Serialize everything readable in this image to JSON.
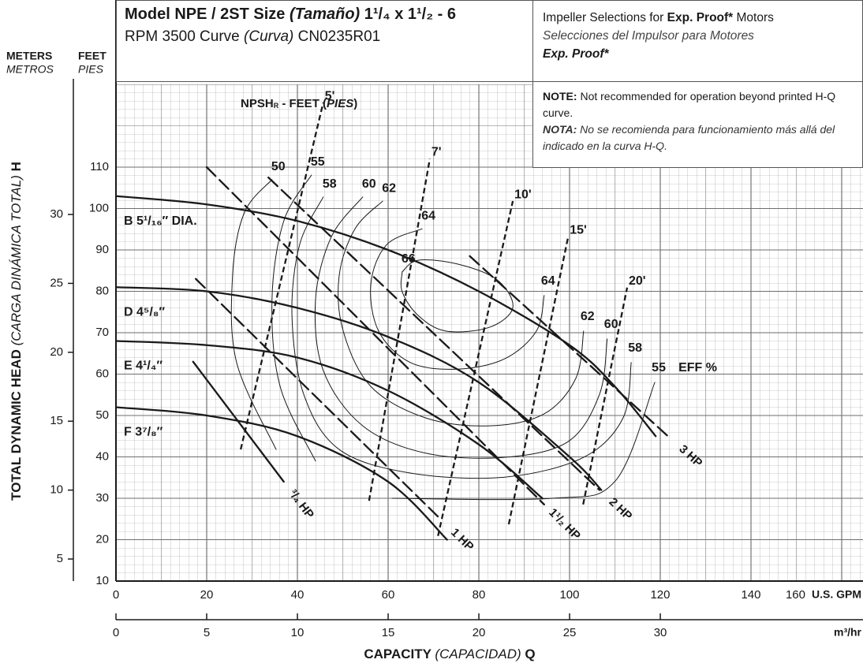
{
  "chart_data": {
    "type": "line",
    "header": {
      "model": [
        "Model NPE / 2ST Size ",
        "(Tamaño)",
        " 1¹/₄ x 1¹/₂ - 6"
      ],
      "curve": [
        "RPM 3500 Curve ",
        "(Curva)",
        " CN0235R01"
      ],
      "selections": [
        "Impeller Selections for ",
        "Exp. Proof*",
        " Motors"
      ],
      "selections_es": [
        "Selecciones del Impulsor para Motores",
        "Exp. Proof*"
      ],
      "note": [
        "NOTE:",
        " Not recommended for operation beyond printed H-Q curve."
      ],
      "nota": [
        "NOTA:",
        " No se recomienda para funcionamiento más allá del indicado en la curva H-Q."
      ]
    },
    "ylabel": [
      "TOTAL DYNAMIC HEAD ",
      "(CARGA DINÁMICA TOTAL)",
      " H"
    ],
    "xlabel": [
      "CAPACITY ",
      "(CAPACIDAD)",
      " Q"
    ],
    "y_units": [
      "FEET",
      "PIES"
    ],
    "y2_units": [
      "METERS",
      "METROS"
    ],
    "x_unit": "U.S. GPM",
    "x2_unit": "m³/hr",
    "npsh_label": [
      "NPSH",
      "R",
      " - FEET (",
      "PIES",
      ")"
    ],
    "eff_label": "EFF %",
    "xlim": [
      0,
      164.7
    ],
    "xticks": [
      0,
      20,
      40,
      60,
      80,
      100,
      120,
      140,
      160
    ],
    "ylim": [
      10,
      130
    ],
    "yticks": [
      10,
      20,
      30,
      40,
      50,
      60,
      70,
      80,
      90,
      100,
      110
    ],
    "y2lim": [
      3.4,
      39.44
    ],
    "y2ticks": [
      5,
      10,
      15,
      20,
      25,
      30
    ],
    "x2lim": [
      0,
      41.17
    ],
    "x2ticks": [
      0,
      5,
      10,
      15,
      20,
      25,
      30
    ],
    "color": "#1a1a1a",
    "grid": true,
    "series": [
      {
        "name": "B 5¹/₁₆″ DIA.",
        "x": [
          0,
          20,
          40,
          60,
          80,
          100,
          110,
          119
        ],
        "values": [
          103,
          101,
          97,
          90,
          80,
          67,
          57,
          45
        ]
      },
      {
        "name": "D 4⁵/₈″",
        "x": [
          0,
          20,
          40,
          60,
          80,
          100,
          107
        ],
        "values": [
          81,
          80,
          76,
          69,
          58,
          40,
          32
        ]
      },
      {
        "name": "E 4¹/₄″",
        "x": [
          0,
          20,
          40,
          60,
          80,
          94
        ],
        "values": [
          68,
          67,
          64,
          56,
          43,
          30
        ]
      },
      {
        "name": "F 3⁷/₈″",
        "x": [
          0,
          20,
          40,
          60,
          73
        ],
        "values": [
          52,
          50,
          45,
          34,
          20
        ]
      }
    ],
    "hp_lines": [
      {
        "name": "³/₄ HP",
        "dashed": false,
        "x": [
          17,
          37
        ],
        "values": [
          63,
          34
        ]
      },
      {
        "name": "1 HP",
        "dashed": true,
        "x": [
          17.6,
          71.8
        ],
        "values": [
          83,
          24.7
        ]
      },
      {
        "name": "1¹/₂ HP",
        "dashed": true,
        "x": [
          20,
          94.4
        ],
        "values": [
          110,
          28.5
        ]
      },
      {
        "name": "2 HP",
        "dashed": true,
        "x": [
          33.6,
          106.6
        ],
        "values": [
          107.5,
          32
        ]
      },
      {
        "name": "3 HP",
        "dashed": true,
        "x": [
          78,
          122
        ],
        "values": [
          88.5,
          44.7
        ]
      }
    ],
    "npsh_lines": [
      {
        "name": "5'",
        "x": [
          27.5,
          45.7
        ],
        "values": [
          41.8,
          125.6
        ]
      },
      {
        "name": "7'",
        "x": [
          55.8,
          69.2
        ],
        "values": [
          29.4,
          112
        ]
      },
      {
        "name": "10'",
        "x": [
          71,
          87.5
        ],
        "values": [
          20.9,
          101.8
        ]
      },
      {
        "name": "15'",
        "x": [
          86.6,
          99.7
        ],
        "values": [
          23.7,
          93.2
        ]
      },
      {
        "name": "20'",
        "x": [
          103,
          112.7
        ],
        "values": [
          28.5,
          80.9
        ]
      }
    ],
    "efficiency_curves": [
      {
        "name": "50",
        "x": [
          34.4,
          28.3,
          25.7,
          26.6,
          35.3
        ],
        "values": [
          107,
          99,
          83.7,
          62.8,
          41.8
        ]
      },
      {
        "name": "55",
        "x": [
          43.1,
          37,
          34.4,
          36.2,
          44,
          null,
          60.9,
          96.2,
          110.1,
          118.8
        ],
        "values": [
          108.1,
          97,
          78,
          57,
          39,
          null,
          30,
          30,
          34.2,
          58
        ]
      },
      {
        "name": "58",
        "x": [
          45.7,
          40.5,
          38.8,
          41.4,
          49.2,
          64.9,
          85.7,
          103.1,
          111.8,
          113.6
        ],
        "values": [
          102.8,
          91.3,
          74.2,
          55.1,
          41.8,
          36.1,
          35.1,
          39.9,
          49.4,
          62.8
        ]
      },
      {
        "name": "60",
        "x": [
          54.4,
          47.5,
          44,
          45.7,
          54.4,
          68.3,
          85.7,
          99.7,
          106.6,
          108.3
        ],
        "values": [
          102.8,
          93.2,
          78,
          60.9,
          47.5,
          40.9,
          39.9,
          43.7,
          55.1,
          68.5
        ]
      },
      {
        "name": "62",
        "x": [
          58.8,
          52.7,
          49.2,
          50.1,
          56.2,
          68.3,
          82.3,
          94.4,
          101.4,
          103.1
        ],
        "values": [
          101.8,
          95.1,
          83.7,
          70.4,
          57,
          49.4,
          47.5,
          50.4,
          59,
          70.4
        ]
      },
      {
        "name": "64",
        "x": [
          67.5,
          59.7,
          56.2,
          57.9,
          64.9,
          75.3,
          85.7,
          92.7,
          94.4
        ],
        "values": [
          95.1,
          91.3,
          81.8,
          70.4,
          62.8,
          61.2,
          63.7,
          70.4,
          79
        ]
      },
      {
        "name": "66",
        "x": [
          63.1,
          66.6,
          75.3,
          84,
          87.5,
          82.3,
          72.7,
          66.6,
          63.1,
          63.1
        ],
        "values": [
          84.7,
          87.5,
          86.6,
          82.8,
          76.1,
          71.3,
          70.4,
          74.2,
          79.9,
          84.7
        ]
      }
    ]
  }
}
